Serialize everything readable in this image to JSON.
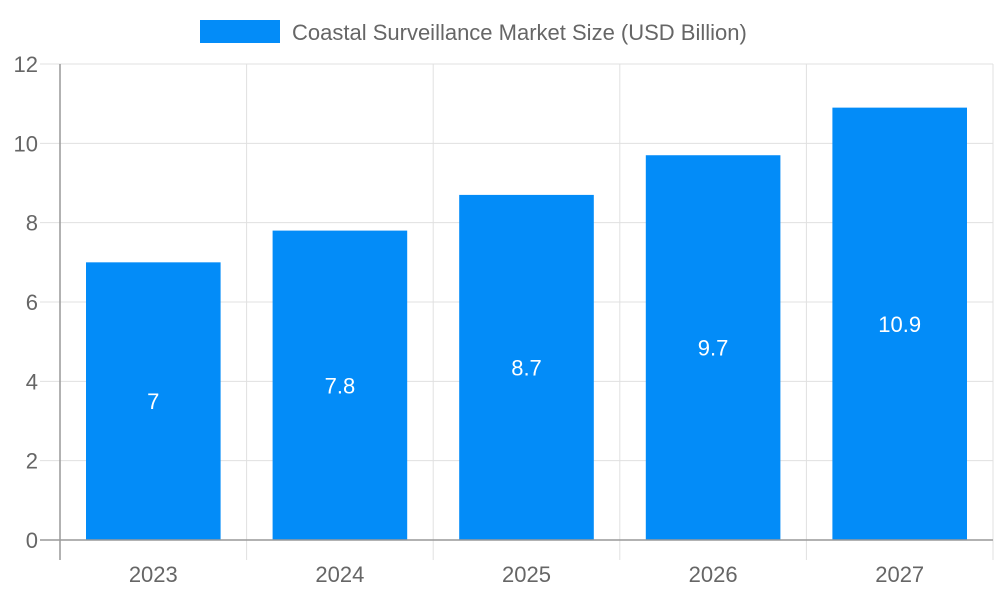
{
  "chart_data": {
    "type": "bar",
    "categories": [
      "2023",
      "2024",
      "2025",
      "2026",
      "2027"
    ],
    "series": [
      {
        "name": "Coastal Surveillance Market Size (USD Billion)",
        "values": [
          7,
          7.8,
          8.7,
          9.7,
          10.9
        ]
      }
    ],
    "data_labels": [
      "7",
      "7.8",
      "8.7",
      "9.7",
      "10.9"
    ],
    "ylim": [
      0,
      12
    ],
    "yticks": [
      0,
      2,
      4,
      6,
      8,
      10,
      12
    ],
    "grid": true,
    "legend_placement": "top",
    "colors": {
      "bar": "#038cf8",
      "grid": "#e0e0e0",
      "axis": "#999999",
      "tick_text": "#666666"
    }
  }
}
